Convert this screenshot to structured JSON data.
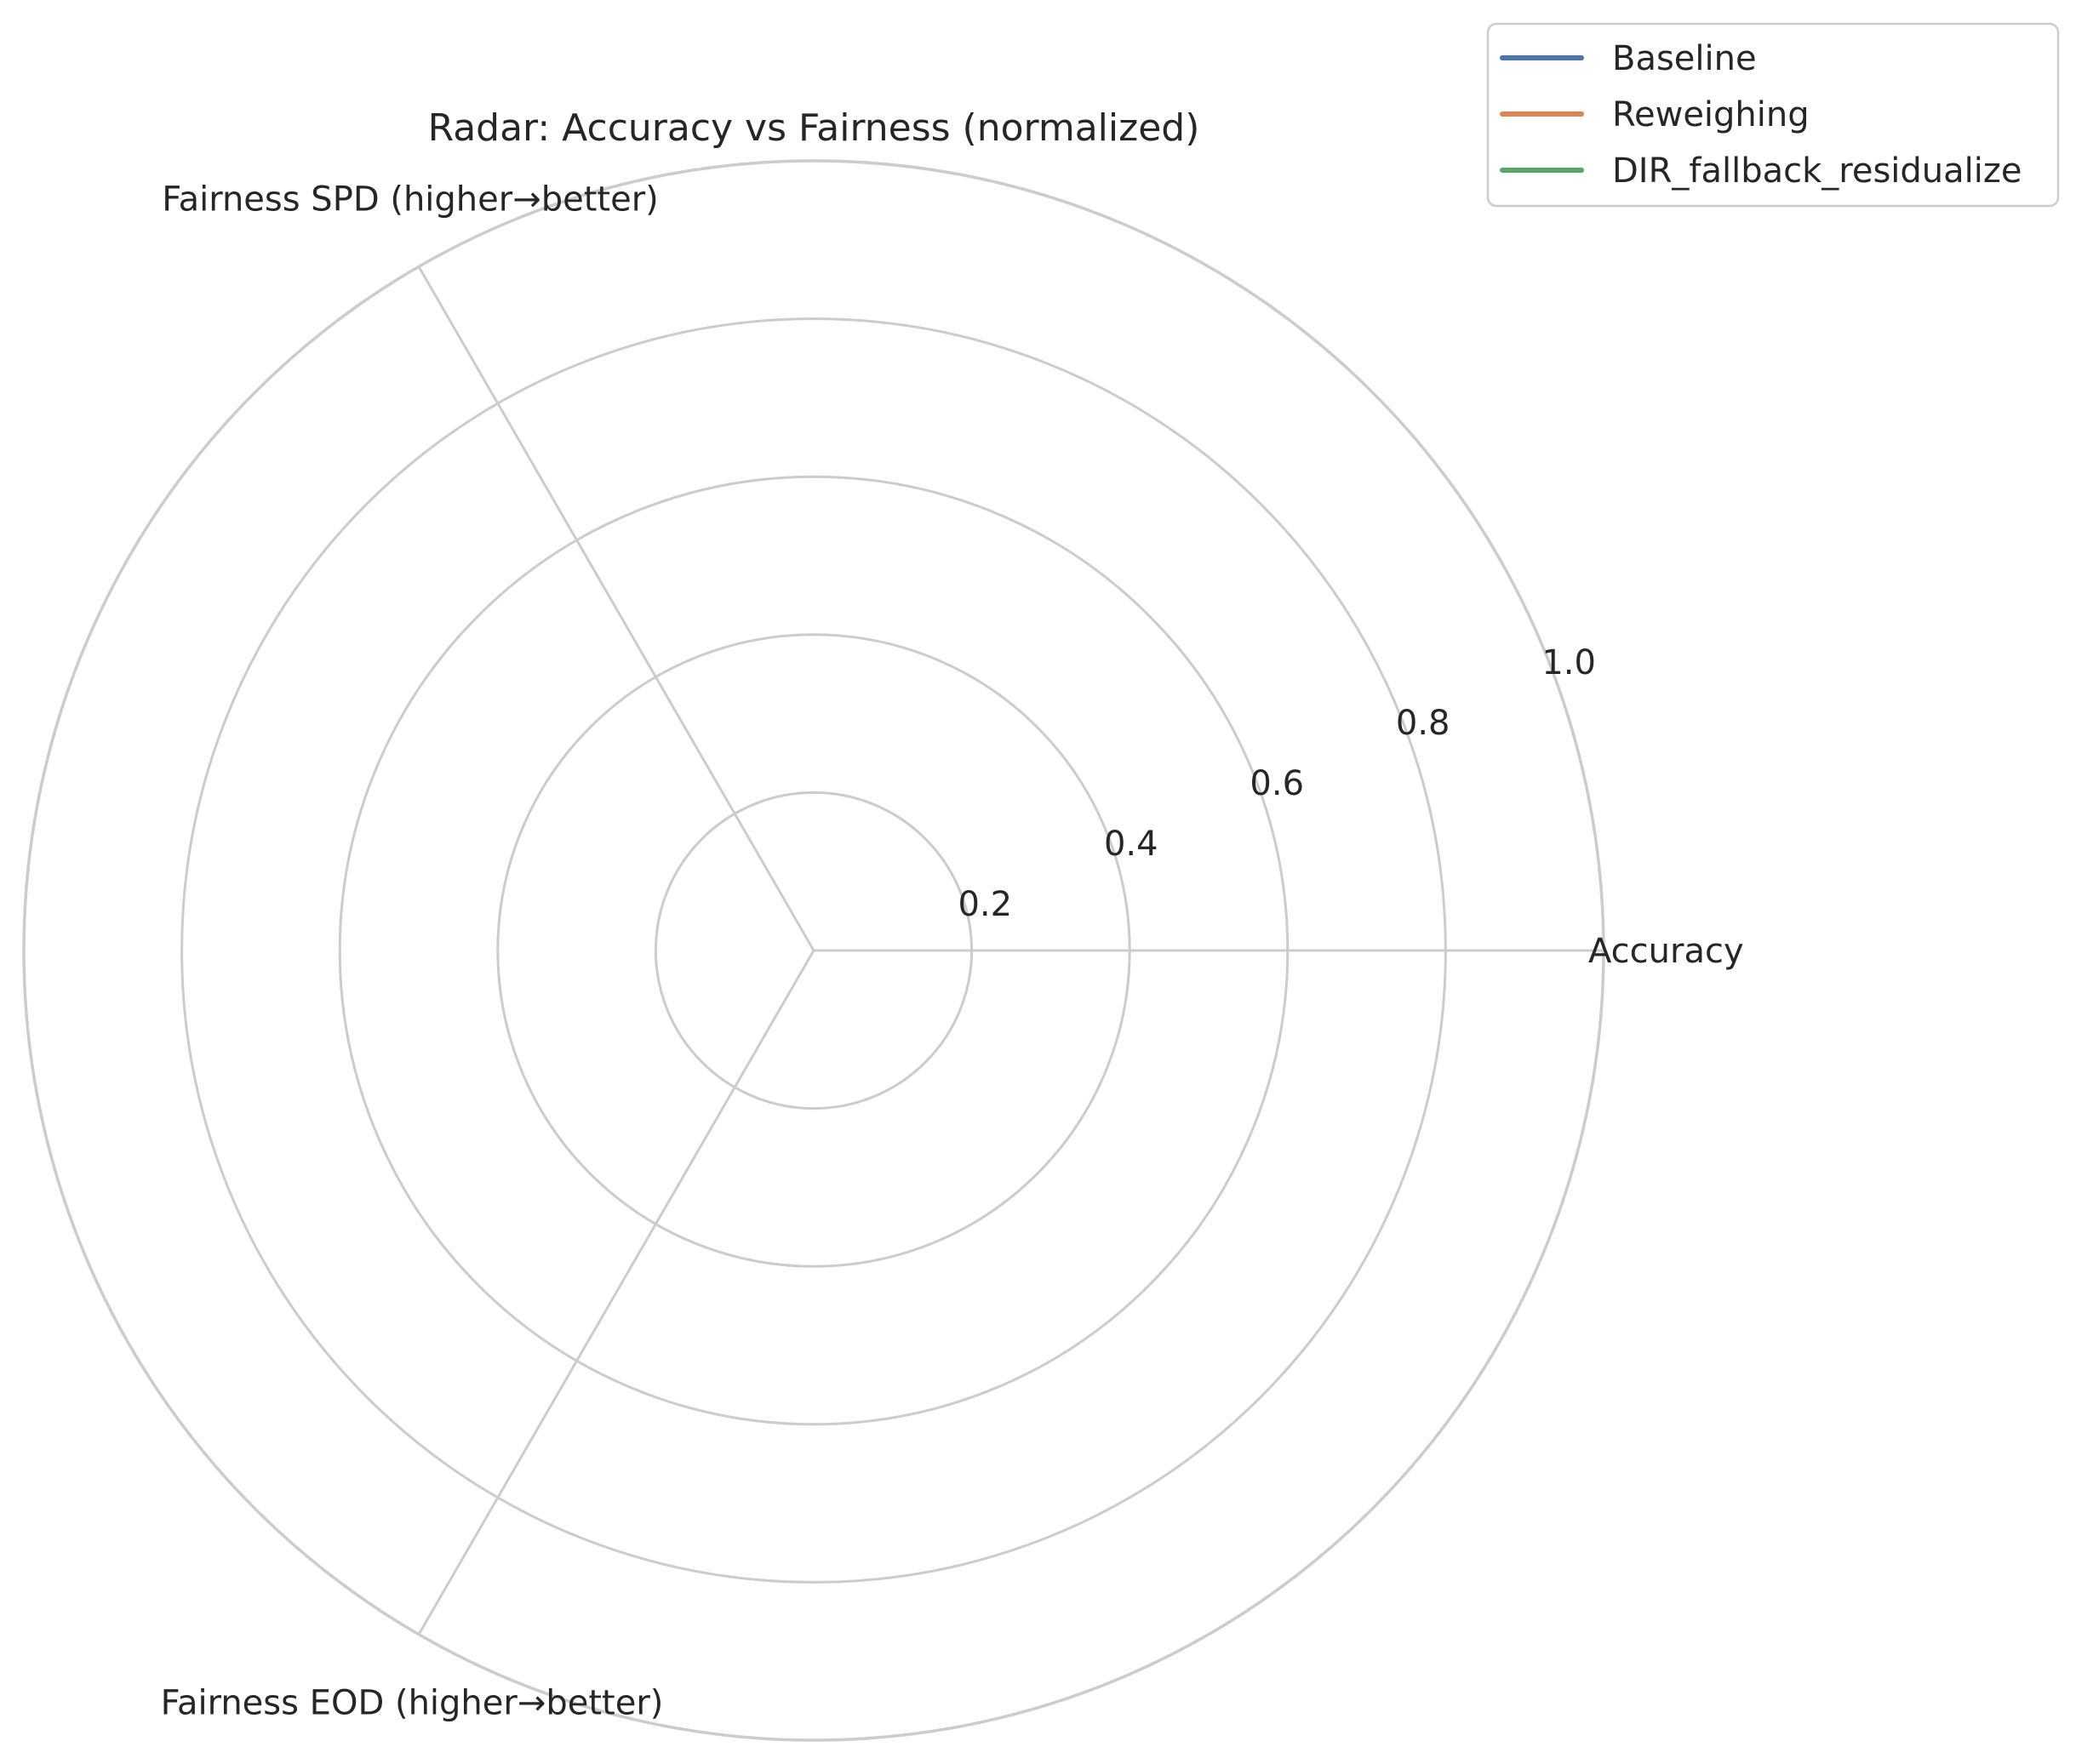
{
  "chart_data": {
    "type": "radar",
    "title": "Radar: Accuracy vs Fairness (normalized)",
    "axes": [
      "Accuracy",
      "Fairness SPD (higher→better)",
      "Fairness EOD (higher→better)"
    ],
    "rlim": [
      0,
      1.0
    ],
    "radial_ticks": [
      0.2,
      0.4,
      0.6,
      0.8,
      1.0
    ],
    "radial_tick_labels": [
      "0.2",
      "0.4",
      "0.6",
      "0.8",
      "1.0"
    ],
    "grid": true,
    "legend_position": "top-right",
    "series": [
      {
        "name": "Baseline",
        "color": "#4c72b0",
        "values": []
      },
      {
        "name": "Reweighing",
        "color": "#dd8452",
        "values": []
      },
      {
        "name": "DIR_fallback_residualize",
        "color": "#55a868",
        "values": []
      }
    ],
    "grid_color": "#cccccc",
    "text_color": "#262626"
  }
}
